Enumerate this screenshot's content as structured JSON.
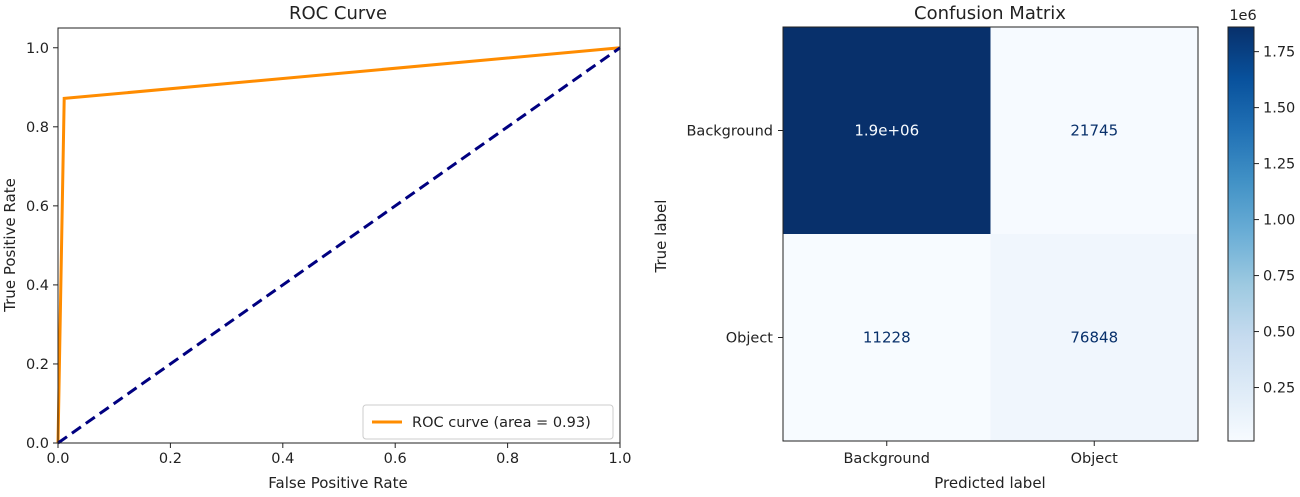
{
  "chart_data": [
    {
      "type": "line",
      "title": "ROC Curve",
      "xlabel": "False Positive Rate",
      "ylabel": "True Positive Rate",
      "xlim": [
        0.0,
        1.0
      ],
      "ylim": [
        0.0,
        1.05
      ],
      "xticks": [
        "0.0",
        "0.2",
        "0.4",
        "0.6",
        "0.8",
        "1.0"
      ],
      "yticks": [
        "0.0",
        "0.2",
        "0.4",
        "0.6",
        "0.8",
        "1.0"
      ],
      "grid": false,
      "legend_position": "lower-right",
      "series": [
        {
          "name": "ROC curve (area = 0.93)",
          "color": "#ff8c00",
          "style": "solid",
          "x": [
            0.0,
            0.011,
            1.0
          ],
          "y": [
            0.0,
            0.872,
            1.0
          ]
        },
        {
          "color": "#000080",
          "style": "dashed",
          "x": [
            0.0,
            1.0
          ],
          "y": [
            0.0,
            1.0
          ]
        }
      ]
    },
    {
      "type": "heatmap",
      "title": "Confusion Matrix",
      "xlabel": "Predicted label",
      "ylabel": "True label",
      "x_categories": [
        "Background",
        "Object"
      ],
      "y_categories": [
        "Background",
        "Object"
      ],
      "values": [
        [
          1860000,
          21745
        ],
        [
          11228,
          76848
        ]
      ],
      "cell_labels": [
        [
          "1.9e+06",
          "21745"
        ],
        [
          "11228",
          "76848"
        ]
      ],
      "colormap": "Blues",
      "colorbar": {
        "range": [
          11228,
          1860000
        ],
        "ticks": [
          "0.25",
          "0.50",
          "0.75",
          "1.00",
          "1.25",
          "1.50",
          "1.75"
        ],
        "offset_label": "1e6"
      }
    }
  ]
}
